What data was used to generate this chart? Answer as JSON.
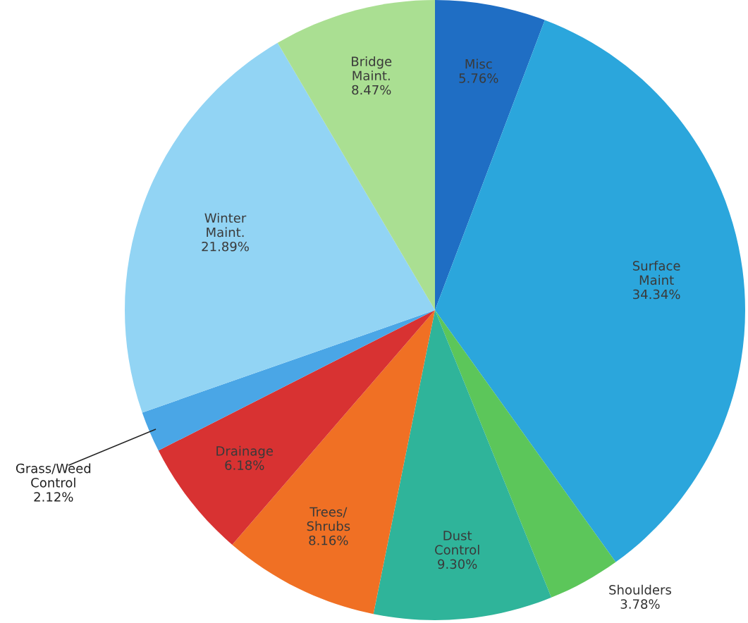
{
  "chart_data": {
    "type": "pie",
    "categories": [
      "Misc",
      "Surface\nMaint",
      "Shoulders",
      "Dust\nControl",
      "Trees/\nShrubs",
      "Drainage",
      "Grass/Weed\nControl",
      "Winter\nMaint.",
      "Bridge\nMaint."
    ],
    "values": [
      5.76,
      34.34,
      3.78,
      9.3,
      8.16,
      6.18,
      2.12,
      21.89,
      8.47
    ],
    "value_labels": [
      "5.76%",
      "34.34%",
      "3.78%",
      "9.30%",
      "8.16%",
      "6.18%",
      "2.12%",
      "21.89%",
      "8.47%"
    ],
    "colors": [
      "#1f6ec4",
      "#2ba6dc",
      "#5cc65a",
      "#2fb49a",
      "#f07024",
      "#d83232",
      "#4aa6e6",
      "#92d4f4",
      "#aadf92"
    ],
    "legend": false
  }
}
